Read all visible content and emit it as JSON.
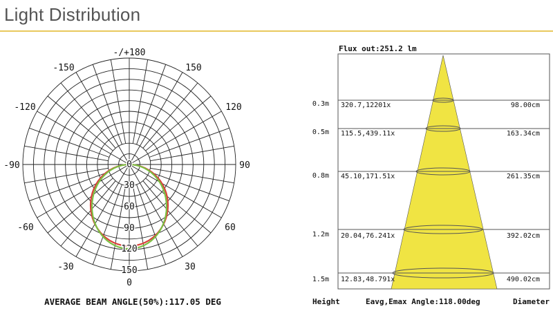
{
  "header": {
    "title": "Light Distribution"
  },
  "polar": {
    "angle_labels": {
      "top": "-/+180",
      "upper_left": "-150",
      "upper_right": "150",
      "mid_upper_left": "-120",
      "mid_upper_right": "120",
      "left": "-90",
      "right": "90",
      "lower_left": "-60",
      "lower_right": "60",
      "bottom_left": "-30",
      "bottom_right": "30",
      "bottom": "0"
    },
    "radial_labels": [
      "0",
      "30",
      "60",
      "90",
      "120",
      "150"
    ],
    "footer": "AVERAGE BEAM ANGLE(50%):117.05 DEG",
    "curve_colors": {
      "c0": "#d9413a",
      "c90": "#7cc043"
    }
  },
  "cone": {
    "flux": "Flux out:251.2 lm",
    "fill_color": "#f0e443",
    "rows": [
      {
        "height": "0.3m",
        "eavg": "320.7,12201x",
        "diameter": "98.00cm"
      },
      {
        "height": "0.5m",
        "eavg": "115.5,439.11x",
        "diameter": "163.34cm"
      },
      {
        "height": "0.8m",
        "eavg": "45.10,171.51x",
        "diameter": "261.35cm"
      },
      {
        "height": "1.2m",
        "eavg": "20.04,76.241x",
        "diameter": "392.02cm"
      },
      {
        "height": "1.5m",
        "eavg": "12.83,48.791x",
        "diameter": "490.02cm"
      }
    ],
    "footer": {
      "height_label": "Height",
      "angle_label": "Eavg,Emax Angle:118.00deg",
      "diameter_label": "Diameter"
    }
  }
}
